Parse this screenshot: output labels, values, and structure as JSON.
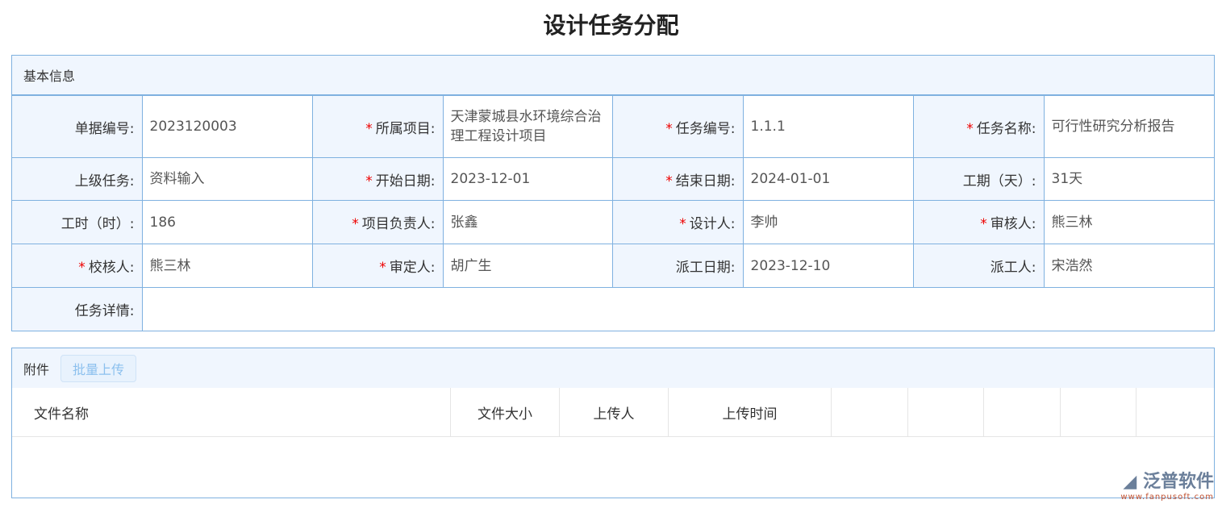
{
  "title": "设计任务分配",
  "basic": {
    "header": "基本信息",
    "rows": [
      [
        {
          "label": "单据编号:",
          "value": "2023120003",
          "req": false
        },
        {
          "label": "所属项目:",
          "value": "天津蒙城县水环境综合治理工程设计项目",
          "req": true
        },
        {
          "label": "任务编号:",
          "value": "1.1.1",
          "req": true
        },
        {
          "label": "任务名称:",
          "value": "可行性研究分析报告",
          "req": true
        }
      ],
      [
        {
          "label": "上级任务:",
          "value": "资料输入",
          "req": false
        },
        {
          "label": "开始日期:",
          "value": "2023-12-01",
          "req": true
        },
        {
          "label": "结束日期:",
          "value": "2024-01-01",
          "req": true
        },
        {
          "label": "工期（天）:",
          "value": "31天",
          "req": false
        }
      ],
      [
        {
          "label": "工时（时）:",
          "value": "186",
          "req": false
        },
        {
          "label": "项目负责人:",
          "value": "张鑫",
          "req": true
        },
        {
          "label": "设计人:",
          "value": "李帅",
          "req": true
        },
        {
          "label": "审核人:",
          "value": "熊三林",
          "req": true
        }
      ],
      [
        {
          "label": "校核人:",
          "value": "熊三林",
          "req": true
        },
        {
          "label": "审定人:",
          "value": "胡广生",
          "req": true
        },
        {
          "label": "派工日期:",
          "value": "2023-12-10",
          "req": false
        },
        {
          "label": "派工人:",
          "value": "宋浩然",
          "req": false
        }
      ]
    ],
    "detail_label": "任务详情:",
    "detail_value": ""
  },
  "attach": {
    "header": "附件",
    "upload_button": "批量上传",
    "columns": [
      "文件名称",
      "文件大小",
      "上传人",
      "上传时间",
      "",
      "",
      "",
      "",
      ""
    ]
  },
  "watermark": {
    "brand": "泛普软件",
    "url": "www.fanpusoft.com"
  }
}
